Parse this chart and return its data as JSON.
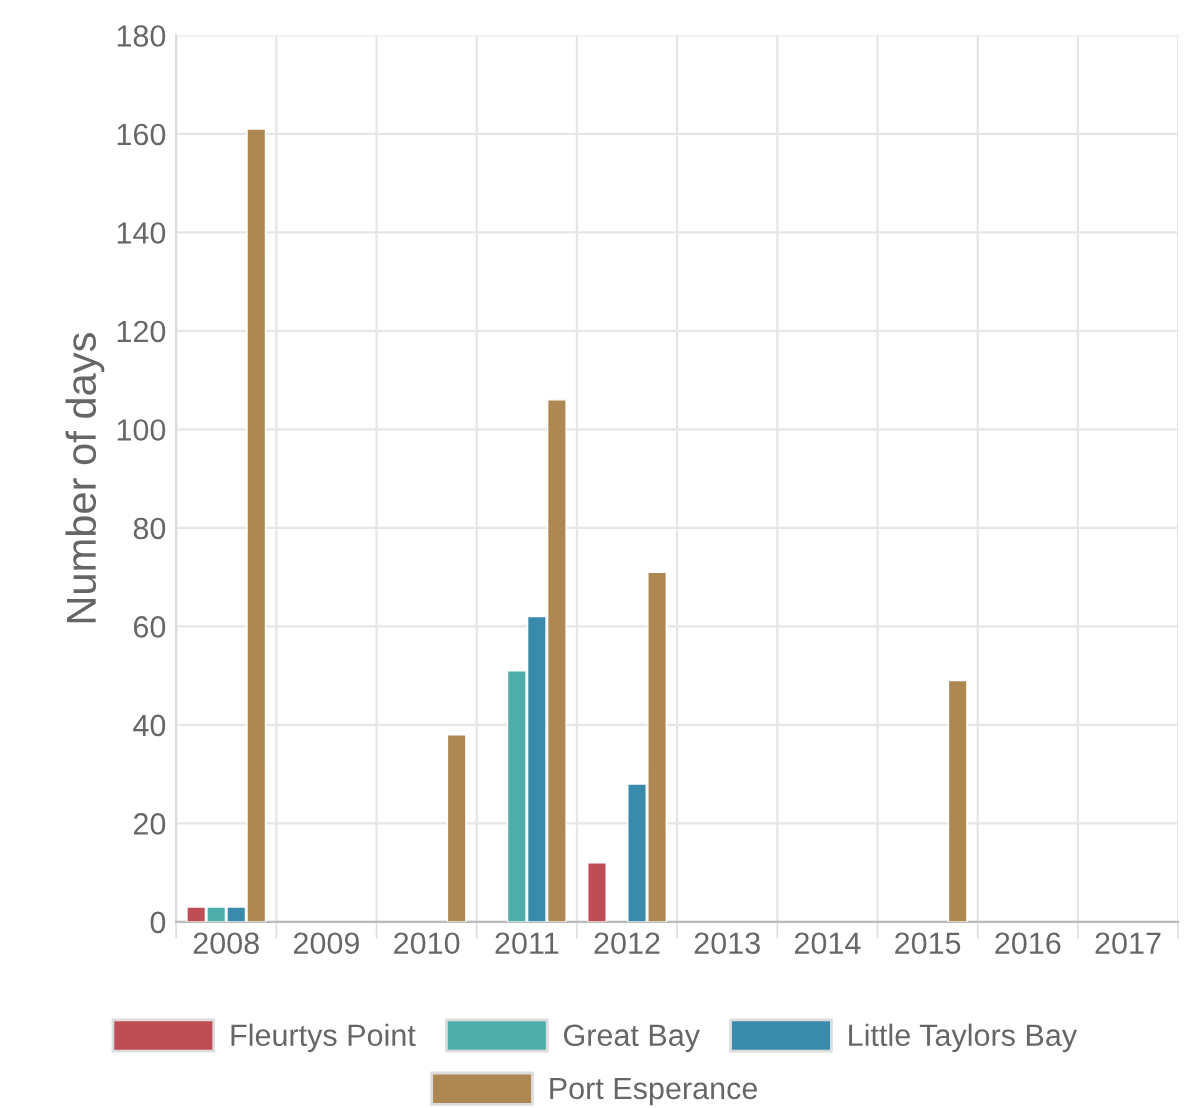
{
  "chart_data": {
    "type": "bar",
    "ylabel": "Number of days",
    "categories": [
      "2008",
      "2009",
      "2010",
      "2011",
      "2012",
      "2013",
      "2014",
      "2015",
      "2016",
      "2017"
    ],
    "series": [
      {
        "name": "Fleurtys Point",
        "color": "#bf4d55",
        "values": [
          3,
          null,
          null,
          null,
          12,
          null,
          null,
          null,
          null,
          null
        ]
      },
      {
        "name": "Great Bay",
        "color": "#4dada9",
        "values": [
          3,
          null,
          null,
          51,
          null,
          null,
          null,
          null,
          null,
          null
        ]
      },
      {
        "name": "Little Taylors Bay",
        "color": "#3a8aab",
        "values": [
          3,
          null,
          null,
          62,
          28,
          null,
          null,
          null,
          null,
          null
        ]
      },
      {
        "name": "Port Esperance",
        "color": "#ad8852",
        "values": [
          161,
          null,
          38,
          106,
          71,
          null,
          null,
          49,
          null,
          null
        ]
      }
    ],
    "ylim": [
      0,
      180
    ],
    "yticks": [
      0,
      20,
      40,
      60,
      80,
      100,
      120,
      140,
      160,
      180
    ],
    "grid": true,
    "legend": "bottom"
  }
}
